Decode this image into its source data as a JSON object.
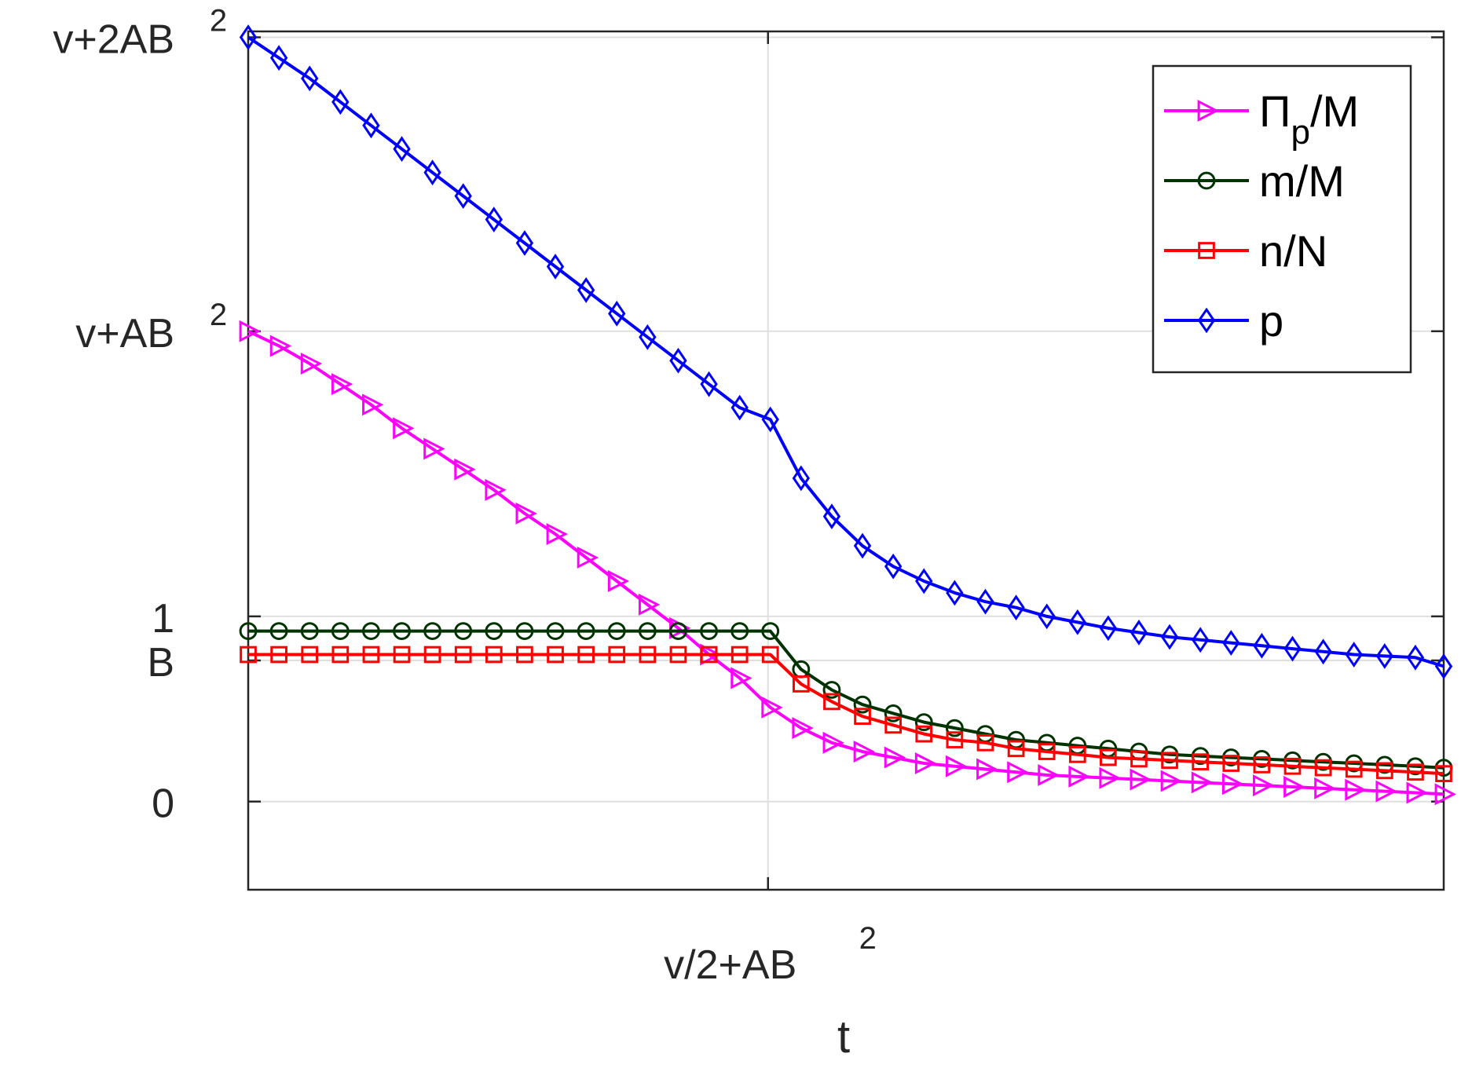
{
  "chart_data": {
    "type": "line",
    "title": "",
    "xlabel": "t",
    "ylabel": "",
    "xlim": [
      0,
      2.3
    ],
    "ylim": [
      -0.3,
      2.62
    ],
    "grid": true,
    "legend_position": "top-right",
    "x_ticks": [
      {
        "value": 1.0,
        "label": "v/2+AB",
        "superscript": "2"
      }
    ],
    "y_ticks": [
      {
        "value": 0,
        "label": "0",
        "superscript": ""
      },
      {
        "value": 0.48,
        "label": "B",
        "superscript": ""
      },
      {
        "value": 0.63,
        "label": "1",
        "superscript": ""
      },
      {
        "value": 1.6,
        "label": "v+AB",
        "superscript": "2"
      },
      {
        "value": 2.6,
        "label": "v+2AB",
        "superscript": "2"
      }
    ],
    "series": [
      {
        "name": "Π_p/M",
        "legend_main": "Π",
        "legend_sub": "p",
        "legend_rest": "/M",
        "color": "#ff00ff",
        "marker": "triangle-right",
        "x": [
          0,
          0.0591,
          0.1182,
          0.1773,
          0.2364,
          0.2955,
          0.3545,
          0.4136,
          0.4727,
          0.5318,
          0.5909,
          0.65,
          0.7091,
          0.7682,
          0.8273,
          0.8864,
          0.9455,
          1.0045,
          1.0636,
          1.1227,
          1.1818,
          1.2409,
          1.3,
          1.3591,
          1.4182,
          1.4773,
          1.5364,
          1.5955,
          1.6545,
          1.7136,
          1.7727,
          1.8318,
          1.8909,
          1.95,
          2.0091,
          2.0682,
          2.1273,
          2.1864,
          2.2455,
          2.3
        ],
        "values": [
          1.6,
          1.55,
          1.49,
          1.42,
          1.35,
          1.27,
          1.2,
          1.13,
          1.06,
          0.98,
          0.91,
          0.83,
          0.75,
          0.67,
          0.59,
          0.5,
          0.42,
          0.32,
          0.25,
          0.2,
          0.17,
          0.15,
          0.13,
          0.12,
          0.11,
          0.1,
          0.09,
          0.085,
          0.08,
          0.075,
          0.07,
          0.065,
          0.06,
          0.055,
          0.05,
          0.045,
          0.04,
          0.035,
          0.03,
          0.025
        ]
      },
      {
        "name": "m/M",
        "color": "#003300",
        "marker": "circle",
        "x": [
          0,
          0.0591,
          0.1182,
          0.1773,
          0.2364,
          0.2955,
          0.3545,
          0.4136,
          0.4727,
          0.5318,
          0.5909,
          0.65,
          0.7091,
          0.7682,
          0.8273,
          0.8864,
          0.9455,
          1.0045,
          1.0636,
          1.1227,
          1.1818,
          1.2409,
          1.3,
          1.3591,
          1.4182,
          1.4773,
          1.5364,
          1.5955,
          1.6545,
          1.7136,
          1.7727,
          1.8318,
          1.8909,
          1.95,
          2.0091,
          2.0682,
          2.1273,
          2.1864,
          2.2455,
          2.3
        ],
        "values": [
          0.58,
          0.58,
          0.58,
          0.58,
          0.58,
          0.58,
          0.58,
          0.58,
          0.58,
          0.58,
          0.58,
          0.58,
          0.58,
          0.58,
          0.58,
          0.58,
          0.58,
          0.58,
          0.45,
          0.38,
          0.33,
          0.3,
          0.27,
          0.25,
          0.23,
          0.21,
          0.2,
          0.19,
          0.18,
          0.17,
          0.16,
          0.155,
          0.15,
          0.145,
          0.14,
          0.135,
          0.13,
          0.125,
          0.12,
          0.115
        ]
      },
      {
        "name": "n/N",
        "color": "#ff0000",
        "marker": "square",
        "x": [
          0,
          0.0591,
          0.1182,
          0.1773,
          0.2364,
          0.2955,
          0.3545,
          0.4136,
          0.4727,
          0.5318,
          0.5909,
          0.65,
          0.7091,
          0.7682,
          0.8273,
          0.8864,
          0.9455,
          1.0045,
          1.0636,
          1.1227,
          1.1818,
          1.2409,
          1.3,
          1.3591,
          1.4182,
          1.4773,
          1.5364,
          1.5955,
          1.6545,
          1.7136,
          1.7727,
          1.8318,
          1.8909,
          1.95,
          2.0091,
          2.0682,
          2.1273,
          2.1864,
          2.2455,
          2.3
        ],
        "values": [
          0.5,
          0.5,
          0.5,
          0.5,
          0.5,
          0.5,
          0.5,
          0.5,
          0.5,
          0.5,
          0.5,
          0.5,
          0.5,
          0.5,
          0.5,
          0.5,
          0.5,
          0.5,
          0.4,
          0.34,
          0.29,
          0.26,
          0.23,
          0.21,
          0.2,
          0.18,
          0.17,
          0.16,
          0.15,
          0.145,
          0.14,
          0.135,
          0.13,
          0.125,
          0.12,
          0.115,
          0.11,
          0.105,
          0.1,
          0.095
        ]
      },
      {
        "name": "p",
        "color": "#0000ff",
        "marker": "diamond",
        "x": [
          0,
          0.0591,
          0.1182,
          0.1773,
          0.2364,
          0.2955,
          0.3545,
          0.4136,
          0.4727,
          0.5318,
          0.5909,
          0.65,
          0.7091,
          0.7682,
          0.8273,
          0.8864,
          0.9455,
          1.0045,
          1.0636,
          1.1227,
          1.1818,
          1.2409,
          1.3,
          1.3591,
          1.4182,
          1.4773,
          1.5364,
          1.5955,
          1.6545,
          1.7136,
          1.7727,
          1.8318,
          1.8909,
          1.95,
          2.0091,
          2.0682,
          2.1273,
          2.1864,
          2.2455,
          2.3
        ],
        "values": [
          2.6,
          2.53,
          2.46,
          2.38,
          2.3,
          2.22,
          2.14,
          2.06,
          1.98,
          1.9,
          1.82,
          1.74,
          1.66,
          1.58,
          1.5,
          1.42,
          1.34,
          1.3,
          1.1,
          0.97,
          0.87,
          0.8,
          0.75,
          0.71,
          0.68,
          0.66,
          0.63,
          0.61,
          0.59,
          0.575,
          0.56,
          0.55,
          0.54,
          0.53,
          0.52,
          0.51,
          0.5,
          0.495,
          0.49,
          0.46
        ]
      }
    ]
  }
}
